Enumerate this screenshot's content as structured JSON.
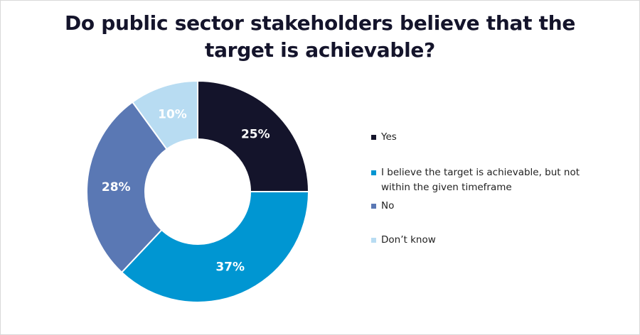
{
  "title_lines": [
    "Do public sector stakeholders believe that the",
    "target is achievable?"
  ],
  "chart_data": {
    "type": "pie",
    "donut": true,
    "title": "Do public sector stakeholders believe that the target is achievable?",
    "legend_position": "right",
    "slices": [
      {
        "label": "Yes",
        "value": 25,
        "display": "25%",
        "color": "#14142b",
        "text_color": "#ffffff"
      },
      {
        "label": "I believe the target is achievable, but not within the given timeframe",
        "value": 37,
        "display": "37%",
        "color": "#0096d2",
        "text_color": "#ffffff"
      },
      {
        "label": "No",
        "value": 28,
        "display": "28%",
        "color": "#5a78b4",
        "text_color": "#ffffff"
      },
      {
        "label": "Don’t know",
        "value": 10,
        "display": "10%",
        "color": "#b8dcf2",
        "text_color": "#ffffff"
      }
    ]
  }
}
